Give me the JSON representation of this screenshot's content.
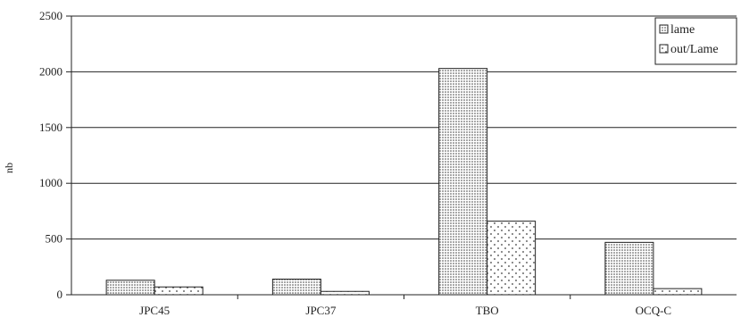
{
  "chart_data": {
    "type": "bar",
    "categories": [
      "JPC45",
      "JPC37",
      "TBO",
      "OCQ-C"
    ],
    "series": [
      {
        "name": "lame",
        "values": [
          130,
          140,
          2030,
          470
        ],
        "pattern": "dense-dots"
      },
      {
        "name": "out/Lame",
        "values": [
          70,
          30,
          660,
          55
        ],
        "pattern": "sparse-dots"
      }
    ],
    "ylabel": "nb",
    "xlabel": "",
    "ylim": [
      0,
      2500
    ],
    "yticks": [
      0,
      500,
      1000,
      1500,
      2000,
      2500
    ],
    "grid": true,
    "legend_position": "top-right",
    "colors": {
      "bar_outline": "#222222",
      "grid": "#222222",
      "fill": "#ffffff",
      "dot": "#333333"
    }
  }
}
